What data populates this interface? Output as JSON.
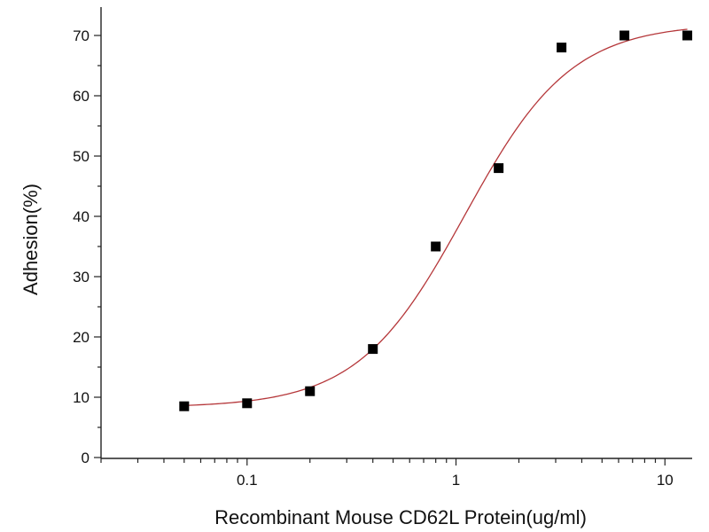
{
  "chart_data": {
    "type": "scatter",
    "xlabel": "Recombinant Mouse CD62L Protein(ug/ml)",
    "ylabel": "Adhesion(%)",
    "x_scale": "log",
    "xlim": [
      0.02,
      13.5
    ],
    "ylim": [
      0,
      75
    ],
    "x_ticks": [
      {
        "value": 0.1,
        "label": "0.1"
      },
      {
        "value": 1,
        "label": "1"
      },
      {
        "value": 10,
        "label": "10"
      }
    ],
    "y_ticks": [
      {
        "value": 0,
        "label": "0"
      },
      {
        "value": 10,
        "label": "10"
      },
      {
        "value": 20,
        "label": "20"
      },
      {
        "value": 30,
        "label": "30"
      },
      {
        "value": 40,
        "label": "40"
      },
      {
        "value": 50,
        "label": "50"
      },
      {
        "value": 60,
        "label": "60"
      },
      {
        "value": 70,
        "label": "70"
      }
    ],
    "grid": false,
    "legend": "none",
    "series": [
      {
        "points": [
          {
            "x": 0.05,
            "y": 8.5
          },
          {
            "x": 0.1,
            "y": 9
          },
          {
            "x": 0.2,
            "y": 11
          },
          {
            "x": 0.4,
            "y": 18
          },
          {
            "x": 0.8,
            "y": 35
          },
          {
            "x": 1.6,
            "y": 48
          },
          {
            "x": 3.2,
            "y": 68
          },
          {
            "x": 6.4,
            "y": 70
          },
          {
            "x": 12.8,
            "y": 70
          }
        ],
        "marker_color": "#000000"
      }
    ],
    "fit_curve": {
      "model": "four-parameter logistic",
      "color": "#b5373a",
      "bottom": 8.3,
      "top": 72,
      "ec50": 1.1,
      "hill": 1.7,
      "x_range": [
        0.05,
        12.8
      ]
    }
  }
}
